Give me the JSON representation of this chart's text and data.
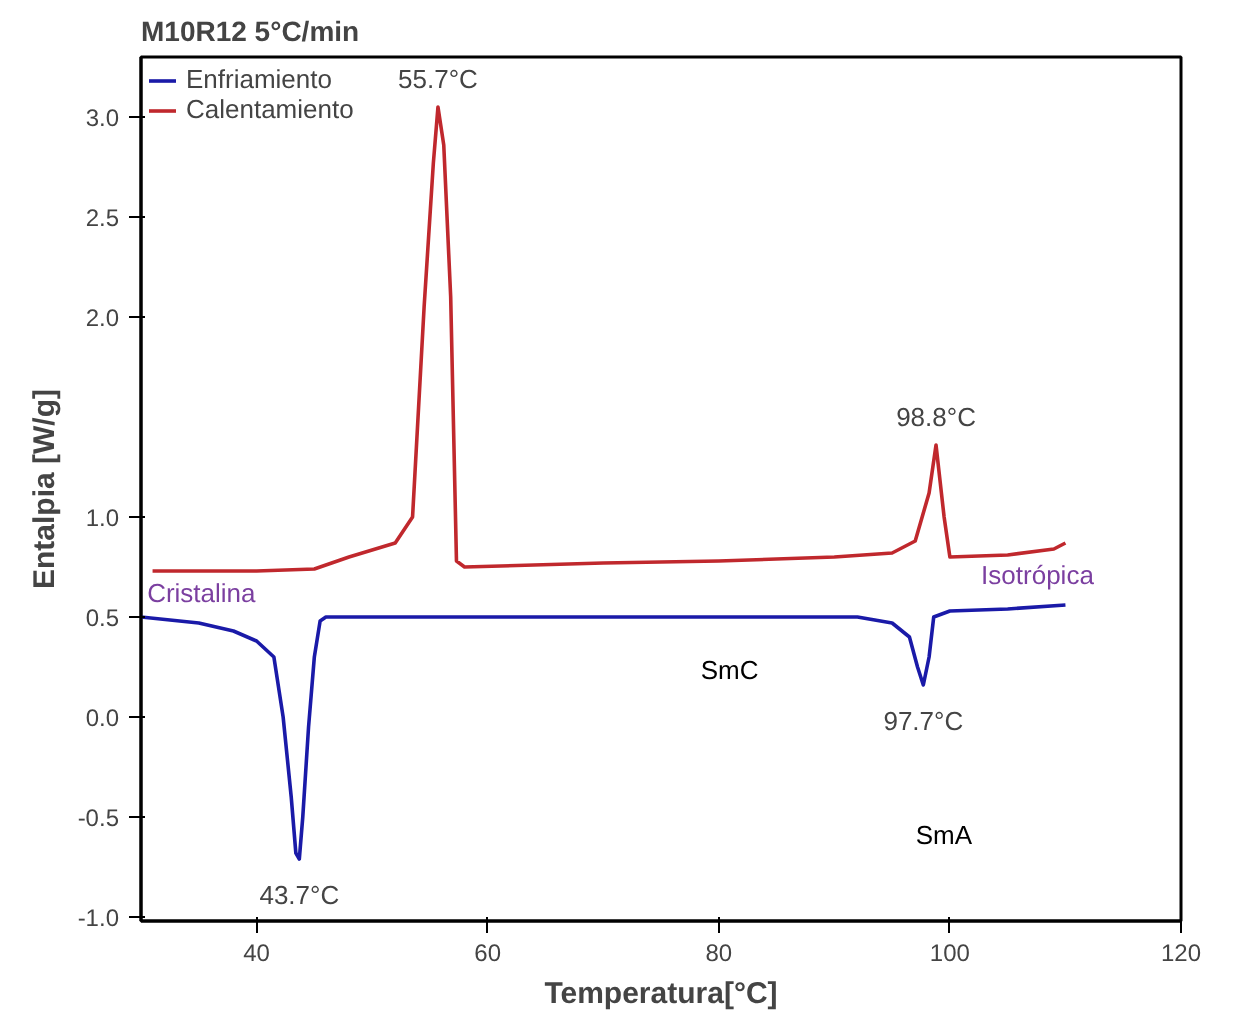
{
  "chart_data": {
    "type": "line",
    "title": "M10R12 5°C/min",
    "xlabel": "Temperatura[°C]",
    "ylabel": "Entalpia [W/g]",
    "xlim": [
      30,
      120
    ],
    "xticks": [
      40,
      60,
      80,
      100,
      120
    ],
    "ylim": [
      -1.02,
      3.3
    ],
    "yticks": [
      {
        "value": -1.0,
        "label": "-1.0"
      },
      {
        "value": -0.5,
        "label": "-0.5"
      },
      {
        "value": 0,
        "label": "0.0"
      },
      0.5,
      {
        "value": 1.0,
        "label": "1.0"
      },
      {
        "value": 2.0,
        "label": "2.0"
      },
      2.5,
      {
        "value": 3.0,
        "label": "3.0"
      }
    ],
    "x": [
      30,
      35,
      38,
      40,
      41.5,
      42.3,
      43,
      43.4,
      43.7,
      44,
      44.5,
      45,
      45.5,
      46,
      50,
      60,
      70,
      80,
      90,
      92,
      95,
      96.5,
      97.2,
      97.7,
      98.2,
      98.6,
      100,
      105,
      110
    ],
    "series": [
      {
        "name": "Enfriamiento",
        "color": "#1a1aa8",
        "values": [
          0.5,
          0.47,
          0.43,
          0.38,
          0.3,
          0.0,
          -0.4,
          -0.68,
          -0.71,
          -0.5,
          -0.05,
          0.3,
          0.48,
          0.5,
          0.5,
          0.5,
          0.5,
          0.5,
          0.5,
          0.5,
          0.47,
          0.4,
          0.25,
          0.16,
          0.3,
          0.5,
          0.53,
          0.54,
          0.56
        ]
      },
      {
        "name": "Calentamiento",
        "color": "#c0282d",
        "x": [
          31,
          40,
          45,
          48,
          52,
          53.5,
          54.5,
          55.3,
          55.7,
          56.2,
          56.8,
          57.3,
          58,
          70,
          80,
          90,
          95,
          97,
          98.2,
          98.8,
          99.5,
          100,
          105,
          109,
          110
        ],
        "values": [
          0.73,
          0.73,
          0.74,
          0.8,
          0.87,
          1.0,
          2.05,
          2.77,
          3.05,
          2.86,
          2.1,
          0.78,
          0.75,
          0.77,
          0.78,
          0.8,
          0.82,
          0.88,
          1.12,
          1.36,
          1.0,
          0.8,
          0.81,
          0.84,
          0.87
        ]
      }
    ],
    "annotations": [
      {
        "text": "55.7°C",
        "x": 55.7,
        "y": 3.05
      },
      {
        "text": "98.8°C",
        "x": 98.8,
        "y": 1.36
      },
      "Cristalina",
      "Isotrópica",
      "SmC",
      {
        "text": "97.7°C",
        "x": 97.7,
        "y": 0.16
      },
      "SmA",
      {
        "text": "43.7°C",
        "x": 43.7,
        "y": -0.71
      }
    ],
    "legend": "top left",
    "grid": false
  }
}
